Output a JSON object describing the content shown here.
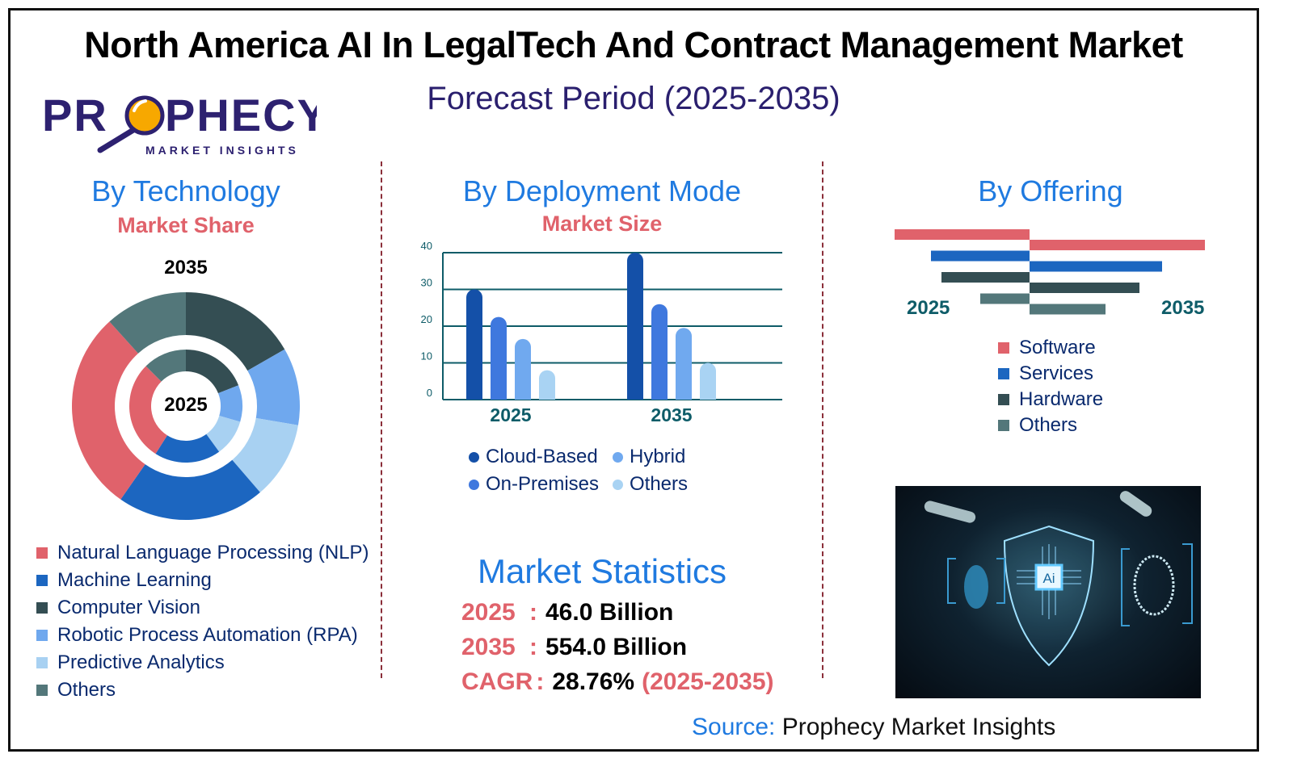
{
  "header": {
    "title": "North America AI In LegalTech And Contract Management Market",
    "subtitle": "Forecast Period (2025-2035)"
  },
  "logo": {
    "name": "PROPHECY",
    "tagline": "MARKET INSIGHTS"
  },
  "technology": {
    "title": "By Technology",
    "subtitle": "Market Share",
    "outer_label": "2035",
    "inner_label": "2025"
  },
  "deployment": {
    "title": "By Deployment Mode",
    "subtitle": "Market Size"
  },
  "offering": {
    "title": "By Offering",
    "left_label": "2025",
    "right_label": "2035"
  },
  "stats": {
    "title": "Market Statistics",
    "rows": [
      {
        "label": "2025",
        "sep": ":",
        "value": "46.0 Billion",
        "extra": ""
      },
      {
        "label": "2035",
        "sep": ":",
        "value": "554.0 Billion",
        "extra": ""
      },
      {
        "label": "CAGR",
        "sep": ":",
        "value": "28.76%",
        "extra": "(2025-2035)"
      }
    ]
  },
  "source": {
    "label": "Source:",
    "value": "Prophecy Market Insights"
  },
  "image": {
    "chip_label": "Ai"
  },
  "chart_data": [
    {
      "type": "pie",
      "title": "By Technology - Market Share",
      "categories": [
        "Natural Language Processing (NLP)",
        "Machine Learning",
        "Computer Vision",
        "Robotic Process Automation (RPA)",
        "Predictive Analytics",
        "Others"
      ],
      "colors": [
        "#e0626b",
        "#1c66c0",
        "#344e53",
        "#6fa8ee",
        "#a8d1f2",
        "#53777a"
      ],
      "series": [
        {
          "name": "2035",
          "values": [
            28.6,
            21.0,
            16.7,
            11.0,
            11.0,
            11.7
          ]
        },
        {
          "name": "2025",
          "values": [
            28.5,
            19.0,
            19.0,
            10.5,
            10.5,
            12.5
          ]
        }
      ]
    },
    {
      "type": "bar",
      "title": "By Deployment Mode - Market Size",
      "categories": [
        "2025",
        "2035"
      ],
      "series": [
        {
          "name": "Cloud-Based",
          "color": "#1450a8",
          "values": [
            30,
            40
          ]
        },
        {
          "name": "On-Premises",
          "color": "#3f78de",
          "values": [
            22.5,
            26
          ]
        },
        {
          "name": "Hybrid",
          "color": "#70a9ef",
          "values": [
            16.5,
            19.5
          ]
        },
        {
          "name": "Others",
          "color": "#a9d3f3",
          "values": [
            8,
            10
          ]
        }
      ],
      "yticks": [
        "0",
        "10",
        "20",
        "30",
        "40"
      ],
      "ylim": [
        0,
        40
      ],
      "grid": true
    },
    {
      "type": "bar",
      "title": "By Offering",
      "orientation": "horizontal-diverging",
      "categories": [
        "Software",
        "Services",
        "Hardware",
        "Others"
      ],
      "colors": [
        "#e0626b",
        "#1c66c0",
        "#344e53",
        "#53777a"
      ],
      "series": [
        {
          "name": "2025",
          "values": [
            167,
            122,
            109,
            61
          ]
        },
        {
          "name": "2035",
          "values": [
            217,
            164,
            136,
            94
          ]
        }
      ]
    }
  ]
}
